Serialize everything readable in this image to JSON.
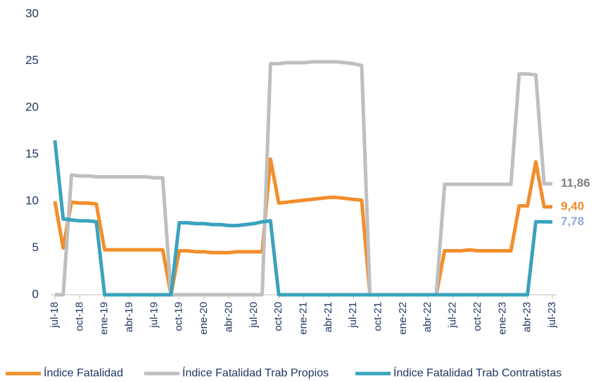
{
  "chart_data": {
    "type": "line",
    "categories": [
      "jul-18",
      null,
      null,
      "oct-18",
      null,
      null,
      "ene-19",
      null,
      null,
      "abr-19",
      null,
      null,
      "jul-19",
      null,
      null,
      "oct-19",
      null,
      null,
      "ene-20",
      null,
      null,
      "abr-20",
      null,
      null,
      "jul-20",
      null,
      null,
      "oct-20",
      null,
      null,
      "ene-21",
      null,
      null,
      "abr-21",
      null,
      null,
      "jul-21",
      null,
      null,
      "oct-21",
      null,
      null,
      "ene-22",
      null,
      null,
      "abr-22",
      null,
      null,
      "jul-22",
      null,
      null,
      "oct-22",
      null,
      null,
      "ene-23",
      null,
      null,
      "abr-23",
      null,
      null,
      "jul-23"
    ],
    "series": [
      {
        "name": "Índice Fatalidad",
        "color": "#f28e2b",
        "label_color": "#f28e2b",
        "values": [
          10,
          5,
          9.9,
          9.8,
          9.8,
          9.7,
          4.8,
          4.8,
          4.8,
          4.8,
          4.8,
          4.8,
          4.8,
          4.8,
          0,
          4.7,
          4.7,
          4.6,
          4.6,
          4.5,
          4.5,
          4.5,
          4.6,
          4.6,
          4.6,
          4.6,
          14.5,
          9.8,
          9.9,
          10,
          10.1,
          10.2,
          10.3,
          10.4,
          10.4,
          10.3,
          10.2,
          10.1,
          0,
          0,
          0,
          0,
          0,
          0,
          0,
          0,
          0,
          4.7,
          4.7,
          4.7,
          4.8,
          4.7,
          4.7,
          4.7,
          4.7,
          4.7,
          9.5,
          9.5,
          14.2,
          9.4,
          9.4
        ],
        "value_labels": [
          null,
          null,
          null,
          null,
          null,
          null,
          null,
          null,
          null,
          null,
          null,
          null,
          null,
          null,
          null,
          null,
          null,
          null,
          null,
          null,
          null,
          null,
          null,
          null,
          null,
          null,
          null,
          null,
          null,
          null,
          null,
          null,
          null,
          null,
          null,
          null,
          null,
          null,
          null,
          null,
          null,
          null,
          null,
          null,
          null,
          null,
          null,
          null,
          null,
          null,
          null,
          null,
          null,
          null,
          null,
          null,
          null,
          null,
          null,
          null,
          "9,40"
        ]
      },
      {
        "name": "Índice Fatalidad Trab Propios",
        "color": "#bfbfbf",
        "label_color": "#7f7f7f",
        "values": [
          0,
          0,
          12.8,
          12.7,
          12.7,
          12.6,
          12.6,
          12.6,
          12.6,
          12.6,
          12.6,
          12.6,
          12.5,
          12.5,
          0,
          0,
          0,
          0,
          0,
          0,
          0,
          0,
          0,
          0,
          0,
          0,
          24.7,
          24.7,
          24.8,
          24.8,
          24.8,
          24.9,
          24.9,
          24.9,
          24.9,
          24.8,
          24.7,
          24.5,
          0,
          0,
          0,
          0,
          0,
          0,
          0,
          0,
          0,
          11.8,
          11.8,
          11.8,
          11.8,
          11.8,
          11.8,
          11.8,
          11.8,
          11.8,
          23.6,
          23.6,
          23.5,
          11.86,
          11.86
        ],
        "value_labels": [
          null,
          null,
          null,
          null,
          null,
          null,
          null,
          null,
          null,
          null,
          null,
          null,
          null,
          null,
          null,
          null,
          null,
          null,
          null,
          null,
          null,
          null,
          null,
          null,
          null,
          null,
          null,
          null,
          null,
          null,
          null,
          null,
          null,
          null,
          null,
          null,
          null,
          null,
          null,
          null,
          null,
          null,
          null,
          null,
          null,
          null,
          null,
          null,
          null,
          null,
          null,
          null,
          null,
          null,
          null,
          null,
          null,
          null,
          null,
          null,
          "11,86"
        ]
      },
      {
        "name": "Índice Fatalidad Trab Contratistas",
        "color": "#3ba3bd",
        "label_color": "#8eaadb",
        "values": [
          16.5,
          8.1,
          8,
          7.9,
          7.9,
          7.8,
          0,
          0,
          0,
          0,
          0,
          0,
          0,
          0,
          0,
          7.7,
          7.7,
          7.6,
          7.6,
          7.5,
          7.5,
          7.4,
          7.4,
          7.5,
          7.6,
          7.8,
          7.9,
          0,
          0,
          0,
          0,
          0,
          0,
          0,
          0,
          0,
          0,
          0,
          0,
          0,
          0,
          0,
          0,
          0,
          0,
          0,
          0,
          0,
          0,
          0,
          0,
          0,
          0,
          0,
          0,
          0,
          0,
          0,
          7.8,
          7.8,
          7.78
        ],
        "value_labels": [
          null,
          null,
          null,
          null,
          null,
          null,
          null,
          null,
          null,
          null,
          null,
          null,
          null,
          null,
          null,
          null,
          null,
          null,
          null,
          null,
          null,
          null,
          null,
          null,
          null,
          null,
          null,
          null,
          null,
          null,
          null,
          null,
          null,
          null,
          null,
          null,
          null,
          null,
          null,
          null,
          null,
          null,
          null,
          null,
          null,
          null,
          null,
          null,
          null,
          null,
          null,
          null,
          null,
          null,
          null,
          null,
          null,
          null,
          null,
          null,
          "7,78"
        ]
      }
    ],
    "ylim": [
      0,
      30
    ],
    "yticks": [
      0,
      5,
      10,
      15,
      20,
      25,
      30
    ],
    "grid": false,
    "legend": "bottom"
  }
}
